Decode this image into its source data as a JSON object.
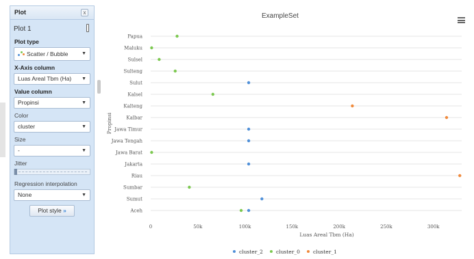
{
  "panel": {
    "header_title": "Plot",
    "close_label": "x",
    "plot_name": "Plot 1",
    "plot_type_label": "Plot type",
    "plot_type_value": "Scatter / Bubble",
    "xaxis_label": "X-Axis column",
    "xaxis_value": "Luas Areal Tbm (Ha)",
    "value_label": "Value column",
    "value_value": "Propinsi",
    "color_label": "Color",
    "color_value": "cluster",
    "size_label": "Size",
    "size_value": "-",
    "jitter_label": "Jitter",
    "regression_label": "Regression interpolation",
    "regression_value": "None",
    "plot_style_label": "Plot style",
    "caret": "▼",
    "style_arrows": "»"
  },
  "chart_title": "ExampleSet",
  "colors": {
    "cluster_2": "#4e8fd8",
    "cluster_0": "#7cc850",
    "cluster_1": "#f08a3c"
  },
  "chart_data": {
    "type": "scatter",
    "title": "ExampleSet",
    "xlabel": "Luas Areal Tbm (Ha)",
    "ylabel": "Propinsi",
    "xlim": [
      0,
      330000
    ],
    "x_ticks": [
      0,
      50000,
      100000,
      150000,
      200000,
      250000,
      300000
    ],
    "x_tick_labels": [
      "0",
      "50k",
      "100k",
      "150k",
      "200k",
      "250k",
      "300k"
    ],
    "categories": [
      "Papua",
      "Maluku",
      "Sulsel",
      "Sulteng",
      "Sulut",
      "Kalsel",
      "Kalteng",
      "Kalbar",
      "Jawa Timur",
      "Jawa Tengah",
      "Jawa Barat",
      "Jakarta",
      "Riau",
      "Sumbar",
      "Sumut",
      "Aceh"
    ],
    "grid": true,
    "legend_position": "bottom-center",
    "series": [
      {
        "name": "cluster_2",
        "points": [
          [
            "Sulut",
            104000
          ],
          [
            "Jawa Timur",
            104000
          ],
          [
            "Jawa Tengah",
            104000
          ],
          [
            "Jakarta",
            104000
          ],
          [
            "Sumut",
            118000
          ],
          [
            "Aceh",
            104000
          ]
        ]
      },
      {
        "name": "cluster_0",
        "points": [
          [
            "Papua",
            28000
          ],
          [
            "Maluku",
            1000
          ],
          [
            "Sulsel",
            9000
          ],
          [
            "Sulteng",
            26000
          ],
          [
            "Kalsel",
            66000
          ],
          [
            "Jawa Barat",
            1000
          ],
          [
            "Sumbar",
            41000
          ],
          [
            "Aceh",
            96000
          ]
        ]
      },
      {
        "name": "cluster_1",
        "points": [
          [
            "Kalteng",
            214000
          ],
          [
            "Kalbar",
            314000
          ],
          [
            "Riau",
            328000
          ]
        ]
      }
    ]
  }
}
